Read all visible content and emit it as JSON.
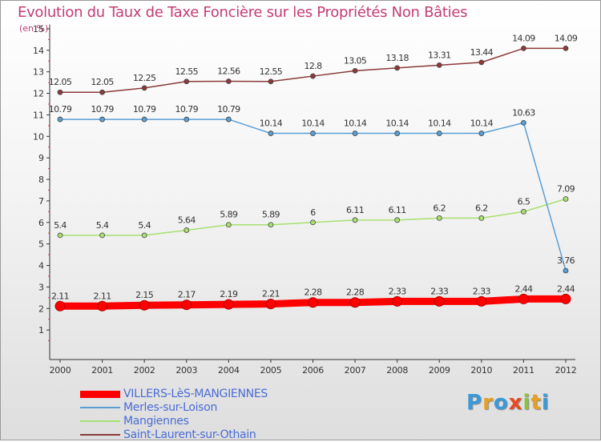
{
  "header": {
    "title": "Evolution du Taux de Taxe Foncière sur les Propriétés Non Bâties",
    "subtitle": "(en %)"
  },
  "logo": {
    "text": "Proxiti",
    "colors": [
      "#3a9ad9",
      "#e8a020",
      "#3a9ad9",
      "#e84a20",
      "#8ac43a",
      "#e8a020",
      "#3a9ad9"
    ]
  },
  "chart_data": {
    "type": "line",
    "title": "Evolution du Taux de Taxe Foncière sur les Propriétés Non Bâties",
    "ylabel": "(en %)",
    "xlabel": "",
    "x": [
      "2000",
      "2001",
      "2002",
      "2003",
      "2004",
      "2005",
      "2006",
      "2007",
      "2008",
      "2009",
      "2010",
      "2011",
      "2012"
    ],
    "ylim": [
      0,
      15
    ],
    "yticks": [
      "1",
      "2",
      "3",
      "4",
      "5",
      "6",
      "7",
      "8",
      "9",
      "10",
      "11",
      "12",
      "13",
      "14",
      "15"
    ],
    "grid": false,
    "legend": "bottom-left",
    "series": [
      {
        "name": "VILLERS-LèS-MANGIENNES",
        "color": "#ff0000",
        "values": [
          2.11,
          2.11,
          2.15,
          2.17,
          2.19,
          2.21,
          2.28,
          2.28,
          2.33,
          2.33,
          2.33,
          2.44,
          2.44
        ],
        "labels": [
          "2.11",
          "2.11",
          "2.15",
          "2.17",
          "2.19",
          "2.21",
          "2.28",
          "2.28",
          "2.33",
          "2.33",
          "2.33",
          "2.44",
          "2.44"
        ]
      },
      {
        "name": "Merles-sur-Loison",
        "color": "#5a9fd4",
        "values": [
          10.79,
          10.79,
          10.79,
          10.79,
          10.79,
          10.14,
          10.14,
          10.14,
          10.14,
          10.14,
          10.14,
          10.63,
          3.76
        ],
        "labels": [
          "10.79",
          "10.79",
          "10.79",
          "10.79",
          "10.79",
          "10.14",
          "10.14",
          "10.14",
          "10.14",
          "10.14",
          "10.14",
          "10.63",
          "3.76"
        ]
      },
      {
        "name": "Mangiennes",
        "color": "#a8e070",
        "values": [
          5.4,
          5.4,
          5.4,
          5.64,
          5.89,
          5.89,
          6,
          6.11,
          6.11,
          6.2,
          6.2,
          6.5,
          7.09
        ],
        "labels": [
          "5.4",
          "5.4",
          "5.4",
          "5.64",
          "5.89",
          "5.89",
          "6",
          "6.11",
          "6.11",
          "6.2",
          "6.2",
          "6.5",
          "7.09"
        ]
      },
      {
        "name": "Saint-Laurent-sur-Othain",
        "color": "#8b3a3a",
        "values": [
          12.05,
          12.05,
          12.25,
          12.55,
          12.56,
          12.55,
          12.8,
          13.05,
          13.18,
          13.31,
          13.44,
          14.09,
          14.09
        ],
        "labels": [
          "12.05",
          "12.05",
          "12.25",
          "12.55",
          "12.56",
          "12.55",
          "12.8",
          "13.05",
          "13.18",
          "13.31",
          "13.44",
          "14.09",
          "14.09"
        ]
      }
    ]
  }
}
